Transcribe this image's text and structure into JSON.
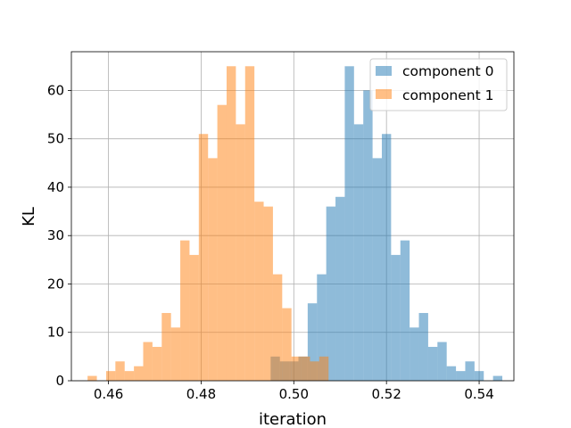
{
  "chart_data": {
    "type": "histogram",
    "xlabel": "iteration",
    "ylabel": "KL",
    "xlim": [
      0.452,
      0.5475
    ],
    "ylim": [
      0,
      68
    ],
    "xticks": [
      0.46,
      0.48,
      0.5,
      0.52,
      0.54
    ],
    "xtick_labels": [
      "0.46",
      "0.48",
      "0.50",
      "0.52",
      "0.54"
    ],
    "yticks": [
      0,
      10,
      20,
      30,
      40,
      50,
      60
    ],
    "ytick_labels": [
      "0",
      "10",
      "20",
      "30",
      "40",
      "50",
      "60"
    ],
    "grid": true,
    "legend_position": "top-right",
    "series": [
      {
        "name": "component 0",
        "color": "#1f77b4",
        "alpha": 0.5,
        "bin_start": 0.495,
        "bin_width": 0.002,
        "counts": [
          5,
          4,
          4,
          5,
          16,
          22,
          36,
          38,
          65,
          53,
          60,
          46,
          51,
          26,
          29,
          11,
          14,
          7,
          8,
          3,
          2,
          4,
          2,
          0,
          1
        ]
      },
      {
        "name": "component 1",
        "color": "#ff7f0e",
        "alpha": 0.5,
        "bin_start": 0.4555,
        "bin_width": 0.002,
        "counts": [
          1,
          0,
          2,
          4,
          2,
          3,
          8,
          7,
          14,
          11,
          29,
          26,
          51,
          46,
          57,
          65,
          53,
          65,
          37,
          36,
          22,
          15,
          5,
          5,
          4,
          5
        ]
      }
    ]
  }
}
